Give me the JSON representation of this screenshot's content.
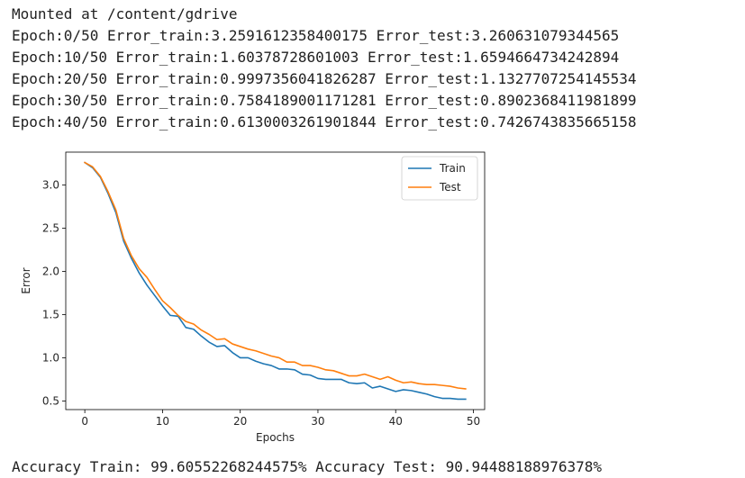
{
  "output": {
    "mounted": "Mounted at /content/gdrive",
    "epochs": [
      "Epoch:0/50 Error_train:3.2591612358400175 Error_test:3.260631079344565",
      "Epoch:10/50 Error_train:1.60378728601003 Error_test:1.6594664734242894",
      "Epoch:20/50 Error_train:0.9997356041826287 Error_test:1.1327707254145534",
      "Epoch:30/50 Error_train:0.7584189001171281 Error_test:0.8902368411981899",
      "Epoch:40/50 Error_train:0.6130003261901844 Error_test:0.7426743835665158"
    ],
    "accuracy": "Accuracy Train: 99.60552268244575% Accuracy Test: 90.94488188976378%"
  },
  "chart_data": {
    "type": "line",
    "xlabel": "Epochs",
    "ylabel": "Error",
    "xlim": [
      -2.45,
      51.45
    ],
    "ylim": [
      0.4,
      3.38
    ],
    "xticks": [
      0,
      10,
      20,
      30,
      40,
      50
    ],
    "yticks": [
      0.5,
      1.0,
      1.5,
      2.0,
      2.5,
      3.0
    ],
    "xtick_labels": [
      "0",
      "10",
      "20",
      "30",
      "40",
      "50"
    ],
    "ytick_labels": [
      "0.5",
      "1.0",
      "1.5",
      "2.0",
      "2.5",
      "3.0"
    ],
    "grid": false,
    "legend": "upper-right",
    "x": [
      0,
      1,
      2,
      3,
      4,
      5,
      6,
      7,
      8,
      9,
      10,
      11,
      12,
      13,
      14,
      15,
      16,
      17,
      18,
      19,
      20,
      21,
      22,
      23,
      24,
      25,
      26,
      27,
      28,
      29,
      30,
      31,
      32,
      33,
      34,
      35,
      36,
      37,
      38,
      39,
      40,
      41,
      42,
      43,
      44,
      45,
      46,
      47,
      48,
      49
    ],
    "series": [
      {
        "name": "Train",
        "color": "#1f77b4",
        "values": [
          3.26,
          3.2,
          3.09,
          2.9,
          2.68,
          2.35,
          2.15,
          1.98,
          1.84,
          1.72,
          1.6,
          1.49,
          1.48,
          1.35,
          1.33,
          1.25,
          1.18,
          1.13,
          1.14,
          1.06,
          1.0,
          1.0,
          0.96,
          0.93,
          0.91,
          0.87,
          0.87,
          0.86,
          0.81,
          0.8,
          0.76,
          0.75,
          0.75,
          0.75,
          0.71,
          0.7,
          0.71,
          0.65,
          0.67,
          0.64,
          0.61,
          0.63,
          0.62,
          0.6,
          0.58,
          0.55,
          0.53,
          0.53,
          0.52,
          0.52
        ]
      },
      {
        "name": "Test",
        "color": "#ff7f0e",
        "values": [
          3.26,
          3.21,
          3.1,
          2.92,
          2.71,
          2.38,
          2.18,
          2.03,
          1.93,
          1.79,
          1.66,
          1.58,
          1.49,
          1.42,
          1.39,
          1.32,
          1.27,
          1.21,
          1.22,
          1.16,
          1.13,
          1.1,
          1.08,
          1.05,
          1.02,
          1.0,
          0.95,
          0.95,
          0.91,
          0.91,
          0.89,
          0.86,
          0.85,
          0.82,
          0.79,
          0.79,
          0.81,
          0.78,
          0.75,
          0.78,
          0.74,
          0.71,
          0.72,
          0.7,
          0.69,
          0.69,
          0.68,
          0.67,
          0.65,
          0.64
        ]
      }
    ]
  }
}
